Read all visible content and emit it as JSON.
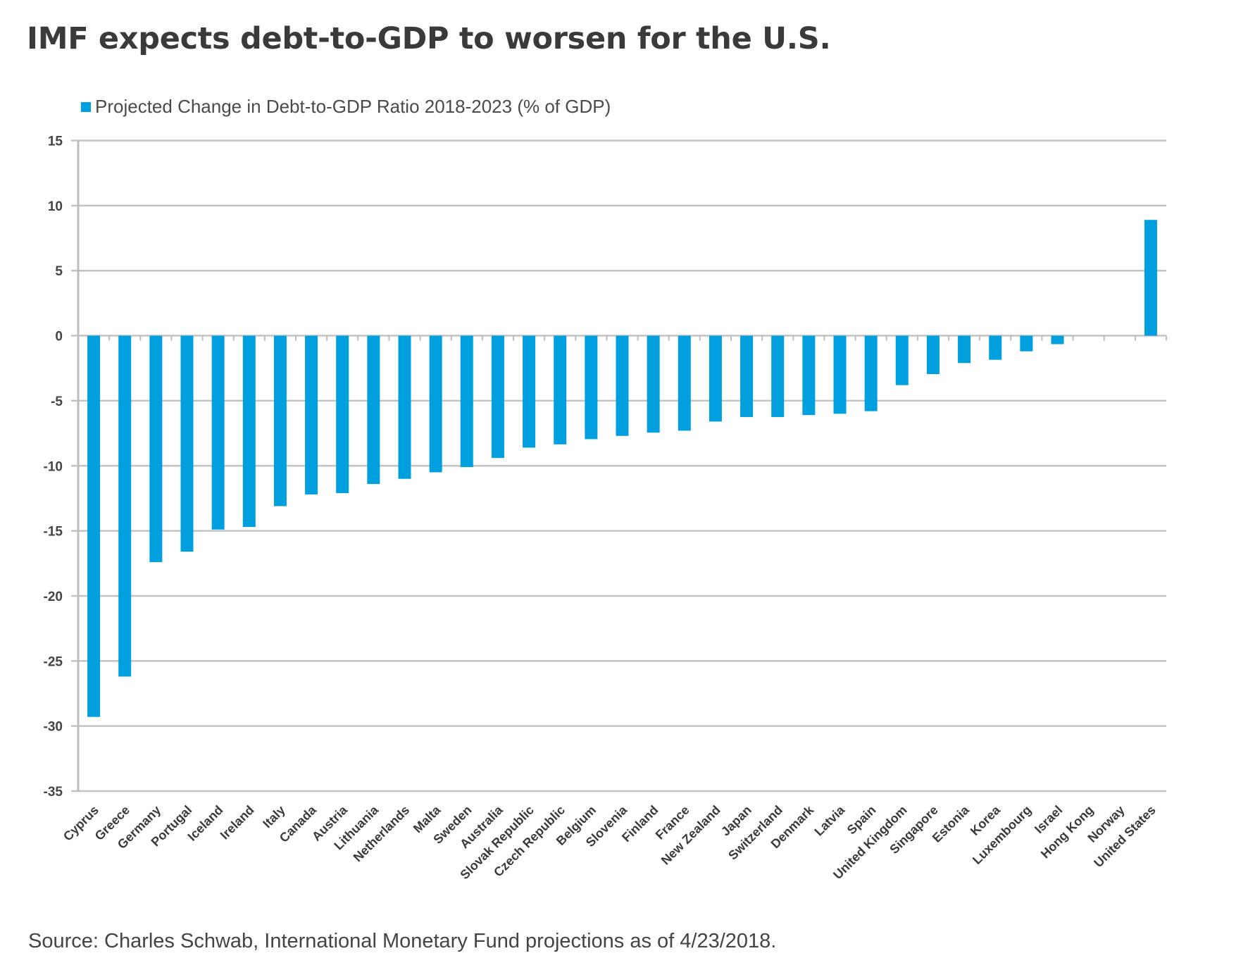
{
  "header": {
    "title": "IMF expects debt-to-GDP to worsen for the U.S."
  },
  "footer": {
    "source": "Source: Charles Schwab, International Monetary Fund projections as of 4/23/2018."
  },
  "colors": {
    "bar": "#009fde",
    "grid": "#c3c3c3",
    "axis": "#bdbdbd",
    "title": "#3a3a3a",
    "text": "#444444"
  },
  "chart_data": {
    "type": "bar",
    "title": "IMF expects debt-to-GDP to worsen for the U.S.",
    "xlabel": "",
    "ylabel": "",
    "ylim": [
      -35,
      15
    ],
    "yticks": [
      15,
      10,
      5,
      0,
      -5,
      -10,
      -15,
      -20,
      -25,
      -30,
      -35
    ],
    "grid": true,
    "legend_position": "top-left",
    "series": [
      {
        "name": "Projected Change in Debt-to-GDP Ratio 2018-2023 (% of GDP)",
        "values": [
          -29.3,
          -26.2,
          -17.4,
          -16.6,
          -14.9,
          -14.7,
          -13.1,
          -12.2,
          -12.1,
          -11.4,
          -11.0,
          -10.5,
          -10.1,
          -9.4,
          -8.6,
          -8.35,
          -7.95,
          -7.7,
          -7.45,
          -7.3,
          -6.6,
          -6.25,
          -6.25,
          -6.1,
          -6.0,
          -5.8,
          -3.8,
          -2.95,
          -2.1,
          -1.85,
          -1.2,
          -0.65,
          0,
          0,
          8.9
        ]
      }
    ],
    "categories": [
      "Cyprus",
      "Greece",
      "Germany",
      "Portugal",
      "Iceland",
      "Ireland",
      "Italy",
      "Canada",
      "Austria",
      "Lithuania",
      "Netherlands",
      "Malta",
      "Sweden",
      "Australia",
      "Slovak Republic",
      "Czech Republic",
      "Belgium",
      "Slovenia",
      "Finland",
      "France",
      "New Zealand",
      "Japan",
      "Switzerland",
      "Denmark",
      "Latvia",
      "Spain",
      "United Kingdom",
      "Singapore",
      "Estonia",
      "Korea",
      "Luxembourg",
      "Israel",
      "Hong Kong",
      "Norway",
      "United States"
    ]
  }
}
